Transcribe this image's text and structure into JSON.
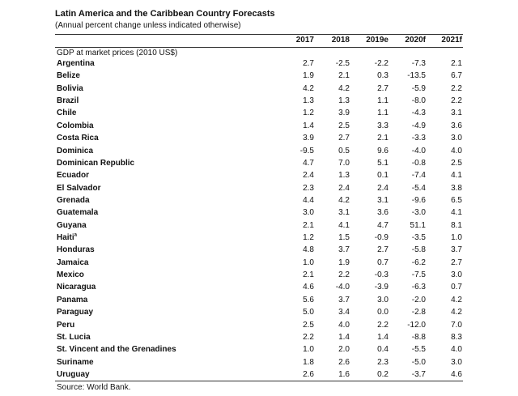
{
  "header": {
    "title": "Latin America and the Caribbean Country Forecasts",
    "subtitle": "(Annual percent change unless indicated otherwise)"
  },
  "table": {
    "columns": [
      "2017",
      "2018",
      "2019e",
      "2020f",
      "2021f"
    ],
    "section": "GDP at market prices (2010 US$)",
    "rows": [
      {
        "label": "Argentina",
        "values": [
          "2.7",
          "-2.5",
          "-2.2",
          "-7.3",
          "2.1"
        ]
      },
      {
        "label": "Belize",
        "values": [
          "1.9",
          "2.1",
          "0.3",
          "-13.5",
          "6.7"
        ]
      },
      {
        "label": "Bolivia",
        "values": [
          "4.2",
          "4.2",
          "2.7",
          "-5.9",
          "2.2"
        ]
      },
      {
        "label": "Brazil",
        "values": [
          "1.3",
          "1.3",
          "1.1",
          "-8.0",
          "2.2"
        ]
      },
      {
        "label": "Chile",
        "values": [
          "1.2",
          "3.9",
          "1.1",
          "-4.3",
          "3.1"
        ]
      },
      {
        "label": "Colombia",
        "values": [
          "1.4",
          "2.5",
          "3.3",
          "-4.9",
          "3.6"
        ]
      },
      {
        "label": "Costa Rica",
        "values": [
          "3.9",
          "2.7",
          "2.1",
          "-3.3",
          "3.0"
        ]
      },
      {
        "label": "Dominica",
        "values": [
          "-9.5",
          "0.5",
          "9.6",
          "-4.0",
          "4.0"
        ]
      },
      {
        "label": "Dominican Republic",
        "values": [
          "4.7",
          "7.0",
          "5.1",
          "-0.8",
          "2.5"
        ]
      },
      {
        "label": "Ecuador",
        "values": [
          "2.4",
          "1.3",
          "0.1",
          "-7.4",
          "4.1"
        ]
      },
      {
        "label": "El Salvador",
        "values": [
          "2.3",
          "2.4",
          "2.4",
          "-5.4",
          "3.8"
        ]
      },
      {
        "label": "Grenada",
        "values": [
          "4.4",
          "4.2",
          "3.1",
          "-9.6",
          "6.5"
        ]
      },
      {
        "label": "Guatemala",
        "values": [
          "3.0",
          "3.1",
          "3.6",
          "-3.0",
          "4.1"
        ]
      },
      {
        "label": "Guyana",
        "values": [
          "2.1",
          "4.1",
          "4.7",
          "51.1",
          "8.1"
        ]
      },
      {
        "label": "Haiti",
        "note": "a",
        "values": [
          "1.2",
          "1.5",
          "-0.9",
          "-3.5",
          "1.0"
        ]
      },
      {
        "label": "Honduras",
        "values": [
          "4.8",
          "3.7",
          "2.7",
          "-5.8",
          "3.7"
        ]
      },
      {
        "label": "Jamaica",
        "values": [
          "1.0",
          "1.9",
          "0.7",
          "-6.2",
          "2.7"
        ]
      },
      {
        "label": "Mexico",
        "values": [
          "2.1",
          "2.2",
          "-0.3",
          "-7.5",
          "3.0"
        ]
      },
      {
        "label": "Nicaragua",
        "values": [
          "4.6",
          "-4.0",
          "-3.9",
          "-6.3",
          "0.7"
        ]
      },
      {
        "label": "Panama",
        "values": [
          "5.6",
          "3.7",
          "3.0",
          "-2.0",
          "4.2"
        ]
      },
      {
        "label": "Paraguay",
        "values": [
          "5.0",
          "3.4",
          "0.0",
          "-2.8",
          "4.2"
        ]
      },
      {
        "label": "Peru",
        "values": [
          "2.5",
          "4.0",
          "2.2",
          "-12.0",
          "7.0"
        ]
      },
      {
        "label": "St. Lucia",
        "values": [
          "2.2",
          "1.4",
          "1.4",
          "-8.8",
          "8.3"
        ]
      },
      {
        "label": "St. Vincent and the Grenadines",
        "values": [
          "1.0",
          "2.0",
          "0.4",
          "-5.5",
          "4.0"
        ]
      },
      {
        "label": "Suriname",
        "values": [
          "1.8",
          "2.6",
          "2.3",
          "-5.0",
          "3.0"
        ]
      },
      {
        "label": "Uruguay",
        "values": [
          "2.6",
          "1.6",
          "0.2",
          "-3.7",
          "4.6"
        ]
      }
    ]
  },
  "footer": {
    "source": "Source: World Bank."
  }
}
